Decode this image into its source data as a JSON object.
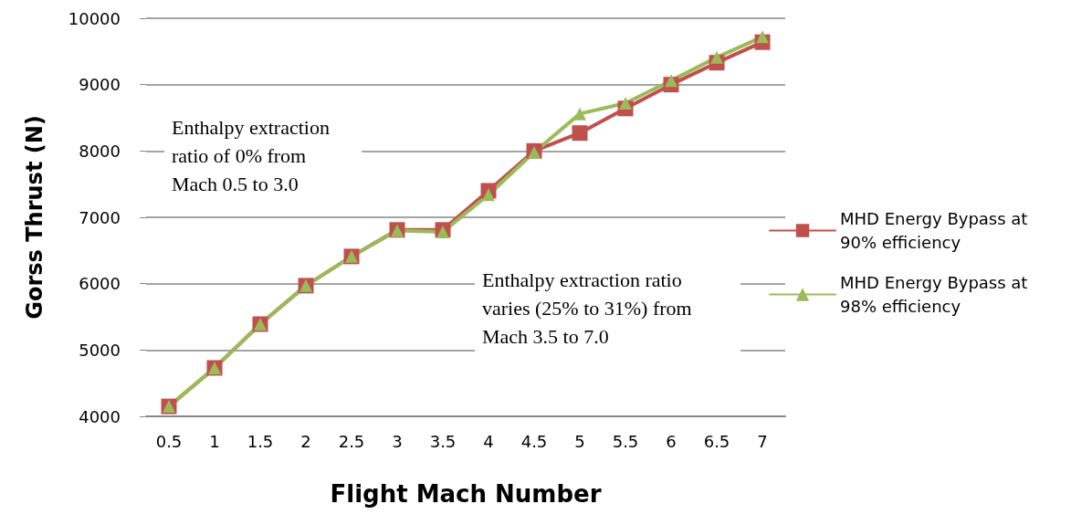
{
  "chart_data": {
    "type": "line",
    "xlabel": "Flight Mach Number",
    "ylabel": "Gorss Thrust (N)",
    "categories": [
      "0.5",
      "1",
      "1.5",
      "2",
      "2.5",
      "3",
      "3.5",
      "4",
      "4.5",
      "5",
      "5.5",
      "6",
      "6.5",
      "7"
    ],
    "series": [
      {
        "name": "MHD Energy Bypass at 90% efficiency",
        "color": "#c0504d",
        "marker": "square",
        "values": [
          4150,
          4730,
          5390,
          5970,
          6410,
          6810,
          6810,
          7400,
          8000,
          8270,
          8640,
          9000,
          9330,
          9640
        ]
      },
      {
        "name": "MHD Energy Bypass at 98% efficiency",
        "color": "#9bbb59",
        "marker": "triangle",
        "values": [
          4150,
          4730,
          5390,
          5970,
          6410,
          6800,
          6780,
          7340,
          7980,
          8560,
          8720,
          9060,
          9410,
          9720
        ]
      }
    ],
    "ylim": [
      4000,
      10000
    ],
    "yticks": [
      4000,
      5000,
      6000,
      7000,
      8000,
      9000,
      10000
    ],
    "grid": "y",
    "legend": "right",
    "annotations": [
      "Enthalpy extraction ratio of 0% from Mach 0.5 to 3.0",
      "Enthalpy extraction ratio varies (25% to 31%) from Mach 3.5 to 7.0"
    ]
  }
}
